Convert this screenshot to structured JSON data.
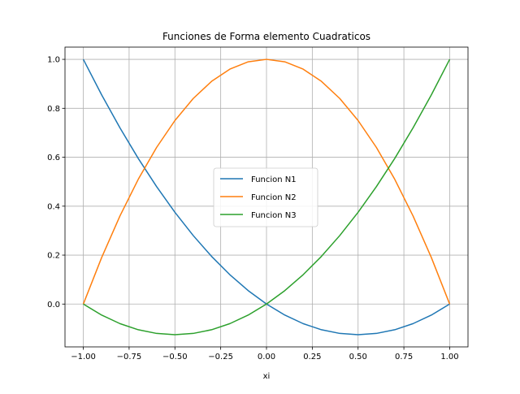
{
  "chart_data": {
    "type": "line",
    "title": "Funciones de Forma elemento Cuadraticos",
    "xlabel": "xi",
    "ylabel": "",
    "xlim": [
      -1.1,
      1.1
    ],
    "ylim": [
      -0.175,
      1.05
    ],
    "grid": true,
    "legend_position": "center",
    "xticks": [
      -1.0,
      -0.75,
      -0.5,
      -0.25,
      0.0,
      0.25,
      0.5,
      0.75,
      1.0
    ],
    "xtick_labels": [
      "−1.00",
      "−0.75",
      "−0.50",
      "−0.25",
      "0.00",
      "0.25",
      "0.50",
      "0.75",
      "1.00"
    ],
    "yticks": [
      0.0,
      0.2,
      0.4,
      0.6,
      0.8,
      1.0
    ],
    "ytick_labels": [
      "0.0",
      "0.2",
      "0.4",
      "0.6",
      "0.8",
      "1.0"
    ],
    "x": [
      -1.0,
      -0.9,
      -0.8,
      -0.7,
      -0.6,
      -0.5,
      -0.4,
      -0.3,
      -0.2,
      -0.1,
      0.0,
      0.1,
      0.2,
      0.3,
      0.4,
      0.5,
      0.6,
      0.7,
      0.8,
      0.9,
      1.0
    ],
    "series": [
      {
        "name": "Funcion N1",
        "color": "#1f77b4",
        "values": [
          1.0,
          0.855,
          0.72,
          0.595,
          0.48,
          0.375,
          0.28,
          0.195,
          0.12,
          0.055,
          0.0,
          -0.045,
          -0.08,
          -0.105,
          -0.12,
          -0.125,
          -0.12,
          -0.105,
          -0.08,
          -0.045,
          0.0
        ]
      },
      {
        "name": "Funcion N2",
        "color": "#ff7f0e",
        "values": [
          0.0,
          0.19,
          0.36,
          0.51,
          0.64,
          0.75,
          0.84,
          0.91,
          0.96,
          0.99,
          1.0,
          0.99,
          0.96,
          0.91,
          0.84,
          0.75,
          0.64,
          0.51,
          0.36,
          0.19,
          0.0
        ]
      },
      {
        "name": "Funcion N3",
        "color": "#2ca02c",
        "values": [
          0.0,
          -0.045,
          -0.08,
          -0.105,
          -0.12,
          -0.125,
          -0.12,
          -0.105,
          -0.08,
          -0.045,
          0.0,
          0.055,
          0.12,
          0.195,
          0.28,
          0.375,
          0.48,
          0.595,
          0.72,
          0.855,
          1.0
        ]
      }
    ]
  }
}
